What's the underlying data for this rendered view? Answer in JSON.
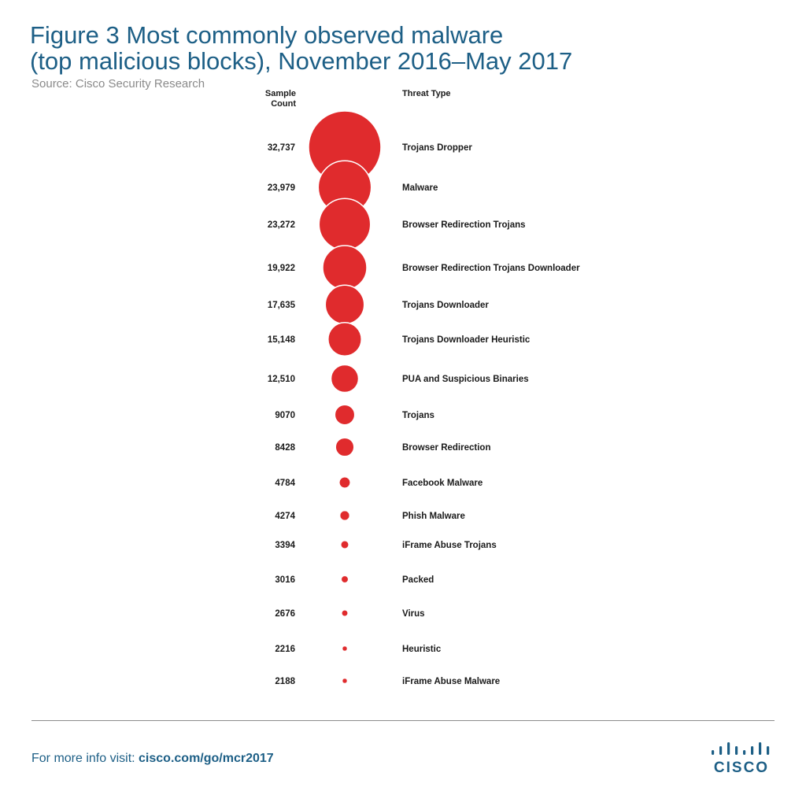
{
  "title_line1": "Figure 3  Most commonly observed malware",
  "title_line2": "(top malicious blocks), November 2016–May 2017",
  "source": "Source: Cisco Security Research",
  "footer": {
    "prefix": "For more info visit: ",
    "link": "cisco.com/go/mcr2017"
  },
  "logo": {
    "text": "CISCO",
    "icon": "cisco-bridge-bars-icon"
  },
  "colors": {
    "bubble": "#e02b2d",
    "title": "#1d5f86"
  },
  "chart_data": {
    "type": "bubble",
    "column_headers": {
      "count": "Sample Count",
      "type": "Threat Type"
    },
    "series": [
      {
        "value": 32737,
        "label": "32,737",
        "category": "Trojans Dropper"
      },
      {
        "value": 23979,
        "label": "23,979",
        "category": "Malware"
      },
      {
        "value": 23272,
        "label": "23,272",
        "category": "Browser Redirection Trojans"
      },
      {
        "value": 19922,
        "label": "19,922",
        "category": "Browser Redirection Trojans Downloader"
      },
      {
        "value": 17635,
        "label": "17,635",
        "category": "Trojans Downloader"
      },
      {
        "value": 15148,
        "label": "15,148",
        "category": "Trojans Downloader Heuristic"
      },
      {
        "value": 12510,
        "label": "12,510",
        "category": "PUA and Suspicious Binaries"
      },
      {
        "value": 9070,
        "label": "9070",
        "category": "Trojans"
      },
      {
        "value": 8428,
        "label": "8428",
        "category": "Browser Redirection"
      },
      {
        "value": 4784,
        "label": "4784",
        "category": "Facebook Malware"
      },
      {
        "value": 4274,
        "label": "4274",
        "category": "Phish Malware"
      },
      {
        "value": 3394,
        "label": "3394",
        "category": "iFrame Abuse Trojans"
      },
      {
        "value": 3016,
        "label": "3016",
        "category": "Packed"
      },
      {
        "value": 2676,
        "label": "2676",
        "category": "Virus"
      },
      {
        "value": 2216,
        "label": "2216",
        "category": "Heuristic"
      },
      {
        "value": 2188,
        "label": "2188",
        "category": "iFrame Abuse Malware"
      }
    ]
  }
}
